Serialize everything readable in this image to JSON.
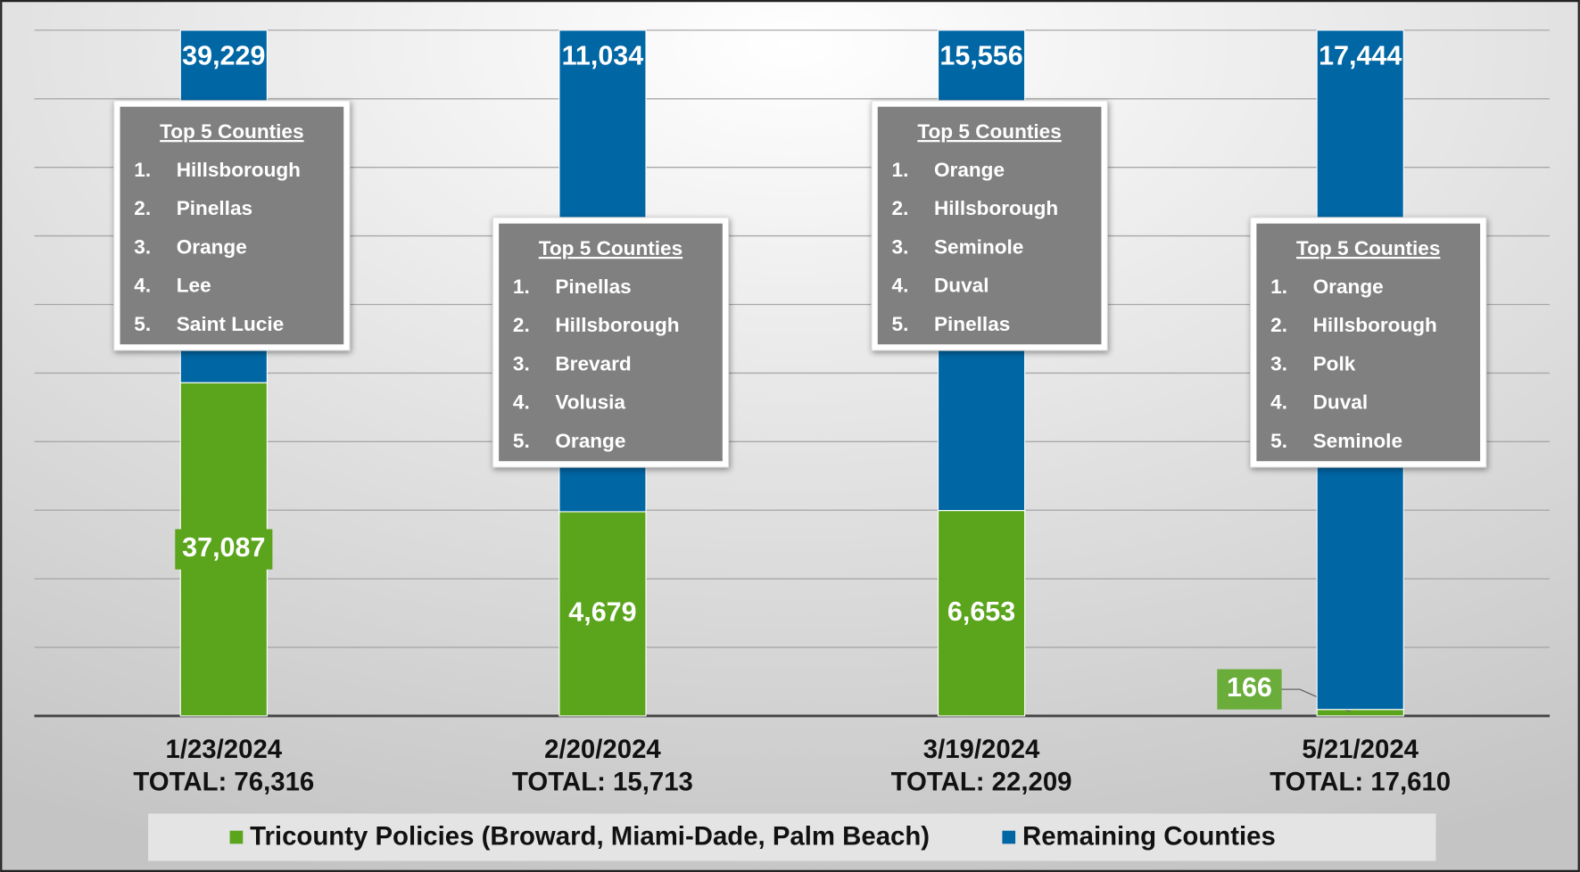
{
  "chart_data": {
    "type": "stacked_bar_percent",
    "categories": [
      "1/23/2024",
      "2/20/2024",
      "3/19/2024",
      "5/21/2024"
    ],
    "totals": [
      {
        "value": 76316,
        "label": "TOTAL: 76,316"
      },
      {
        "value": 15713,
        "label": "TOTAL: 15,713"
      },
      {
        "value": 22209,
        "label": "TOTAL: 22,209"
      },
      {
        "value": 17610,
        "label": "TOTAL: 17,610"
      }
    ],
    "series": [
      {
        "name": "Tricounty Policies (Broward, Miami-Dade, Palm Beach)",
        "color": "#5aa51c",
        "values": [
          37087,
          4679,
          6653,
          166
        ],
        "value_labels": [
          "37,087",
          "4,679",
          "6,653",
          "166"
        ]
      },
      {
        "name": "Remaining Counties",
        "color": "#0066a4",
        "values": [
          39229,
          11034,
          15556,
          17444
        ],
        "value_labels": [
          "39,229",
          "11,034",
          "15,556",
          "17,444"
        ]
      }
    ],
    "ylim": [
      0,
      100
    ],
    "yticks": [
      0,
      10,
      20,
      30,
      40,
      50,
      60,
      70,
      80,
      90,
      100
    ],
    "grid": true,
    "legend": "bottom",
    "annotations": [
      {
        "title": "Top 5 Counties",
        "items": [
          {
            "rank": "1.",
            "name": "Hillsborough"
          },
          {
            "rank": "2.",
            "name": "Pinellas"
          },
          {
            "rank": "3.",
            "name": "Orange"
          },
          {
            "rank": "4.",
            "name": "Lee"
          },
          {
            "rank": "5.",
            "name": "Saint Lucie"
          }
        ]
      },
      {
        "title": "Top 5 Counties",
        "items": [
          {
            "rank": "1.",
            "name": "Pinellas"
          },
          {
            "rank": "2.",
            "name": "Hillsborough"
          },
          {
            "rank": "3.",
            "name": "Brevard"
          },
          {
            "rank": "4.",
            "name": "Volusia"
          },
          {
            "rank": "5.",
            "name": "Orange"
          }
        ]
      },
      {
        "title": "Top 5 Counties",
        "items": [
          {
            "rank": "1.",
            "name": "Orange"
          },
          {
            "rank": "2.",
            "name": "Hillsborough"
          },
          {
            "rank": "3.",
            "name": "Seminole"
          },
          {
            "rank": "4.",
            "name": "Duval"
          },
          {
            "rank": "5.",
            "name": "Pinellas"
          }
        ]
      },
      {
        "title": "Top 5 Counties",
        "items": [
          {
            "rank": "1.",
            "name": "Orange"
          },
          {
            "rank": "2.",
            "name": "Hillsborough"
          },
          {
            "rank": "3.",
            "name": "Polk"
          },
          {
            "rank": "4.",
            "name": "Duval"
          },
          {
            "rank": "5.",
            "name": "Seminole"
          }
        ]
      }
    ]
  }
}
